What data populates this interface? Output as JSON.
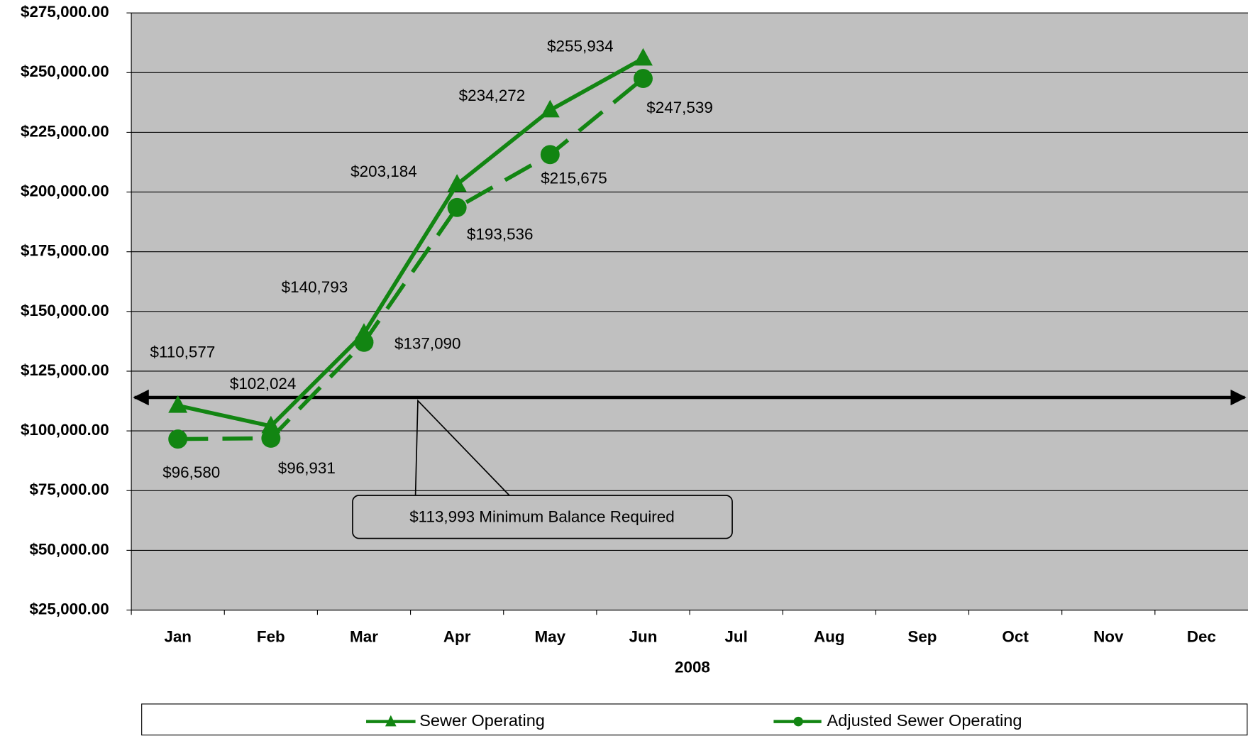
{
  "chart_data": {
    "type": "line",
    "categories": [
      "Jan",
      "Feb",
      "Mar",
      "Apr",
      "May",
      "Jun",
      "Jul",
      "Aug",
      "Sep",
      "Oct",
      "Nov",
      "Dec"
    ],
    "x_label": "2008",
    "series": [
      {
        "name": "Sewer Operating",
        "color": "#128512",
        "marker": "triangle",
        "dashed": false,
        "values": [
          110577,
          102024,
          140793,
          203184,
          234272,
          255934,
          null,
          null,
          null,
          null,
          null,
          null
        ],
        "value_labels": [
          "$110,577",
          "$102,024",
          "$140,793",
          "$203,184",
          "$234,272",
          "$255,934",
          null,
          null,
          null,
          null,
          null,
          null
        ]
      },
      {
        "name": "Adjusted Sewer Operating",
        "color": "#128512",
        "marker": "circle",
        "dashed": true,
        "values": [
          96580,
          96931,
          137090,
          193536,
          215675,
          247539,
          null,
          null,
          null,
          null,
          null,
          null
        ],
        "value_labels": [
          "$96,580",
          "$96,931",
          "$137,090",
          "$193,536",
          "$215,675",
          "$247,539",
          null,
          null,
          null,
          null,
          null,
          null
        ]
      }
    ],
    "threshold": {
      "value": 113993,
      "label": "$113,993 Minimum Balance Required"
    },
    "ylim": [
      25000,
      275000
    ],
    "yticks": [
      {
        "value": 25000,
        "label": "$25,000.00"
      },
      {
        "value": 50000,
        "label": "$50,000.00"
      },
      {
        "value": 75000,
        "label": "$75,000.00"
      },
      {
        "value": 100000,
        "label": "$100,000.00"
      },
      {
        "value": 125000,
        "label": "$125,000.00"
      },
      {
        "value": 150000,
        "label": "$150,000.00"
      },
      {
        "value": 175000,
        "label": "$175,000.00"
      },
      {
        "value": 200000,
        "label": "$200,000.00"
      },
      {
        "value": 225000,
        "label": "$225,000.00"
      },
      {
        "value": 250000,
        "label": "$250,000.00"
      },
      {
        "value": 275000,
        "label": "$275,000.00"
      }
    ],
    "grid": true,
    "legend": "bottom"
  }
}
